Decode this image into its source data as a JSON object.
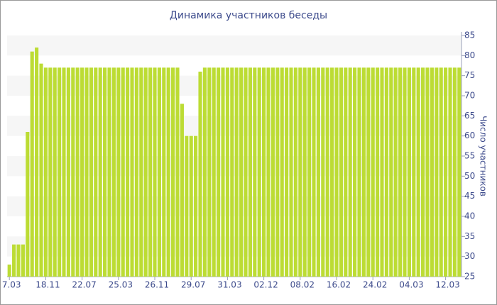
{
  "chart_data": {
    "type": "bar",
    "title": "Динамика участников беседы",
    "y_axis_label": "Число участников",
    "color": "#bcdc34",
    "grid": true,
    "ylim": [
      25,
      85
    ],
    "yticks": [
      25,
      30,
      35,
      40,
      45,
      50,
      55,
      60,
      65,
      70,
      75,
      80,
      85
    ],
    "categories": [
      "7.03",
      null,
      null,
      null,
      null,
      null,
      null,
      null,
      "18.11",
      null,
      null,
      null,
      null,
      null,
      null,
      null,
      "22.07",
      null,
      null,
      null,
      null,
      null,
      null,
      null,
      "25.03",
      null,
      null,
      null,
      null,
      null,
      null,
      null,
      "26.11",
      null,
      null,
      null,
      null,
      null,
      null,
      null,
      "29.07",
      null,
      null,
      null,
      null,
      null,
      null,
      null,
      "31.03",
      null,
      null,
      null,
      null,
      null,
      null,
      null,
      "02.12",
      null,
      null,
      null,
      null,
      null,
      null,
      null,
      "08.02",
      null,
      null,
      null,
      null,
      null,
      null,
      null,
      "16.02",
      null,
      null,
      null,
      null,
      null,
      null,
      null,
      "24.02",
      null,
      null,
      null,
      null,
      null,
      null,
      null,
      "04.03",
      null,
      null,
      null,
      null,
      null,
      null,
      null,
      "12.03",
      null,
      null,
      null
    ],
    "values": [
      28,
      33,
      33,
      33,
      61,
      81,
      82,
      78,
      77,
      77,
      77,
      77,
      77,
      77,
      77,
      77,
      77,
      77,
      77,
      77,
      77,
      77,
      77,
      77,
      77,
      77,
      77,
      77,
      77,
      77,
      77,
      77,
      77,
      77,
      77,
      77,
      77,
      77,
      68,
      60,
      60,
      60,
      76,
      77,
      77,
      77,
      77,
      77,
      77,
      77,
      77,
      77,
      77,
      77,
      77,
      77,
      77,
      77,
      77,
      77,
      77,
      77,
      77,
      77,
      77,
      77,
      77,
      77,
      77,
      77,
      77,
      77,
      77,
      77,
      77,
      77,
      77,
      77,
      77,
      77,
      77,
      77,
      77,
      77,
      77,
      77,
      77,
      77,
      77,
      77,
      77,
      77,
      77,
      77,
      77,
      77,
      77,
      77,
      77,
      77
    ]
  }
}
